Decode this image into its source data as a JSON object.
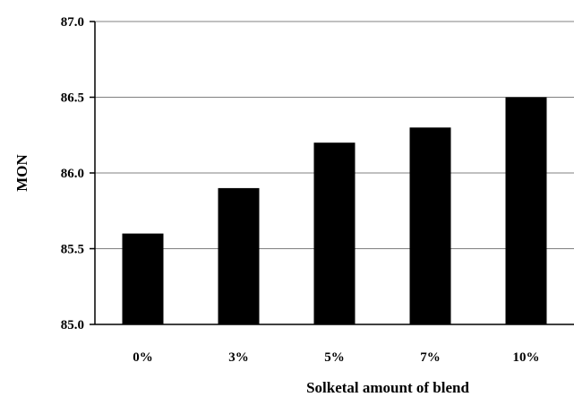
{
  "chart_data": {
    "type": "bar",
    "categories": [
      "0%",
      "3%",
      "5%",
      "7%",
      "10%"
    ],
    "values": [
      85.6,
      85.9,
      86.2,
      86.3,
      86.5
    ],
    "title": "",
    "xlabel": "Solketal amount of blend",
    "ylabel": "MON",
    "ylim": [
      85.0,
      87.0
    ],
    "yticks": [
      "85.0",
      "85.5",
      "86.0",
      "86.5",
      "87.0"
    ],
    "grid": true,
    "bar_color": "#000000",
    "grid_color": "#808080"
  }
}
